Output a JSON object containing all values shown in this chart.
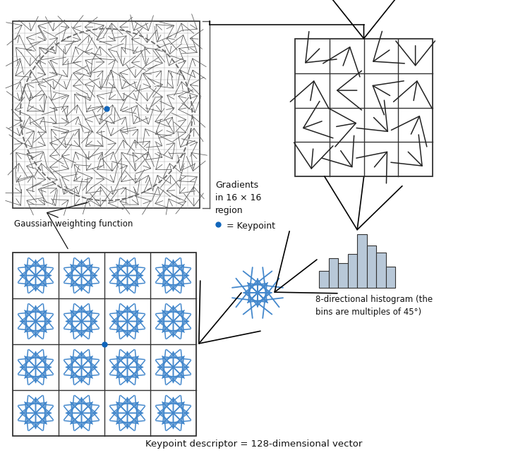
{
  "bg_color": "#ffffff",
  "blue_color": "#4488cc",
  "keypoint_color": "#1166bb",
  "hist_color": "#b8c8d8",
  "hist_values": [
    0.3,
    0.52,
    0.44,
    0.6,
    0.95,
    0.75,
    0.62,
    0.38
  ],
  "arrows_4x4_angles": [
    [
      225,
      70,
      215,
      270
    ],
    [
      80,
      180,
      150,
      80
    ],
    [
      200,
      10,
      315,
      65
    ],
    [
      265,
      305,
      50,
      315
    ]
  ],
  "text_gradients": "Gradients\nin 16 × 16\nregion",
  "text_keypoint_label": " = Keypoint",
  "text_gaussian": "Gaussian weighting function",
  "text_histogram": "8-directional histogram (the\nbins are multiples of 45°)",
  "text_descriptor": "Keypoint descriptor = 128-dimensional vector"
}
